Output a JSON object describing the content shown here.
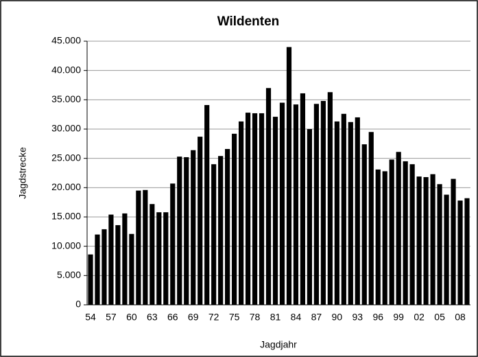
{
  "chart_data": {
    "type": "bar",
    "title": "Wildenten",
    "x_label": "Jagdjahr",
    "y_label": "Jagdstrecke",
    "categories": [
      "54",
      null,
      null,
      "57",
      null,
      null,
      "60",
      null,
      null,
      "63",
      null,
      null,
      "66",
      null,
      null,
      "69",
      null,
      null,
      "72",
      null,
      null,
      "75",
      null,
      null,
      "78",
      null,
      null,
      "81",
      null,
      null,
      "84",
      null,
      null,
      "87",
      null,
      null,
      "90",
      null,
      null,
      "93",
      null,
      null,
      "96",
      null,
      null,
      "99",
      null,
      null,
      "02",
      null,
      null,
      "05",
      null,
      null,
      "08",
      null
    ],
    "values": [
      8600,
      12000,
      12900,
      15400,
      13600,
      15600,
      12100,
      19500,
      19600,
      17200,
      15800,
      15800,
      20700,
      25300,
      25200,
      26400,
      28700,
      34100,
      24000,
      25400,
      26600,
      29200,
      31300,
      32800,
      32700,
      32700,
      37000,
      32100,
      34500,
      44000,
      34200,
      36100,
      30000,
      34300,
      34800,
      36300,
      31300,
      32600,
      31200,
      32000,
      27400,
      29500,
      23100,
      22800,
      24800,
      26100,
      24500,
      24000,
      21900,
      21800,
      22300,
      20600,
      18800,
      21500,
      17800,
      18200
    ],
    "color": "#000000",
    "ylim": [
      0,
      45000
    ],
    "yticks": [
      0,
      {
        "value": 5000,
        "label": "5.000"
      },
      {
        "value": 10000,
        "label": "10.000"
      },
      {
        "value": 15000,
        "label": "15.000"
      },
      {
        "value": 20000,
        "label": "20.000"
      },
      {
        "value": 25000,
        "label": "25.000"
      },
      {
        "value": 30000,
        "label": "30.000"
      },
      {
        "value": 35000,
        "label": "35.000"
      },
      {
        "value": 40000,
        "label": "40.000"
      },
      {
        "value": 45000,
        "label": "45.000"
      }
    ],
    "grid": true
  }
}
